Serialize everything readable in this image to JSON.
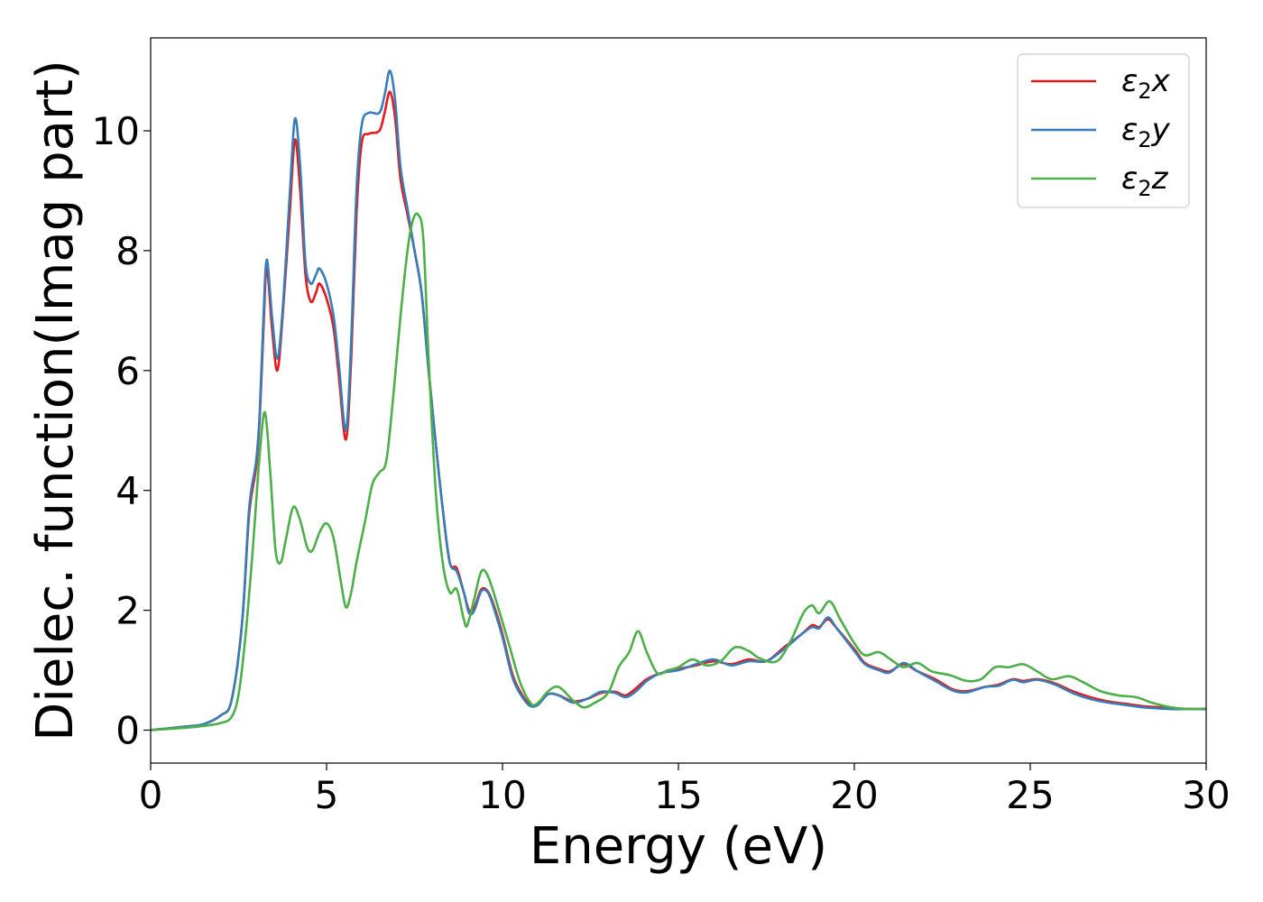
{
  "chart_data": {
    "type": "line",
    "xlabel": "Energy (eV)",
    "ylabel": "Dielec. function(Imag part)",
    "xlim": [
      0,
      30
    ],
    "ylim": [
      -0.55,
      11.55
    ],
    "xticks": [
      "0",
      "5",
      "10",
      "15",
      "20",
      "25",
      "30"
    ],
    "yticks": [
      "0",
      "2",
      "4",
      "6",
      "8",
      "10"
    ],
    "grid": false,
    "legend_position": "top-right",
    "series": [
      {
        "name": "ε₂x",
        "legend": {
          "symbol": "ε",
          "sub": "2",
          "var": "x"
        },
        "color": "#e41a1c",
        "points": [
          [
            0,
            0
          ],
          [
            1,
            0.06
          ],
          [
            1.5,
            0.1
          ],
          [
            2,
            0.25
          ],
          [
            2.3,
            0.5
          ],
          [
            2.6,
            1.8
          ],
          [
            2.8,
            3.6
          ],
          [
            3.0,
            4.4
          ],
          [
            3.1,
            5.2
          ],
          [
            3.2,
            6.6
          ],
          [
            3.3,
            7.7
          ],
          [
            3.45,
            6.7
          ],
          [
            3.6,
            6.0
          ],
          [
            3.75,
            6.9
          ],
          [
            3.95,
            8.6
          ],
          [
            4.1,
            9.85
          ],
          [
            4.25,
            9.0
          ],
          [
            4.4,
            7.6
          ],
          [
            4.55,
            7.15
          ],
          [
            4.7,
            7.3
          ],
          [
            4.8,
            7.45
          ],
          [
            5.0,
            7.2
          ],
          [
            5.2,
            6.7
          ],
          [
            5.35,
            5.9
          ],
          [
            5.55,
            4.85
          ],
          [
            5.7,
            6.2
          ],
          [
            5.85,
            8.6
          ],
          [
            6.0,
            9.8
          ],
          [
            6.2,
            9.95
          ],
          [
            6.5,
            10.0
          ],
          [
            6.65,
            10.3
          ],
          [
            6.8,
            10.65
          ],
          [
            6.95,
            10.2
          ],
          [
            7.1,
            9.2
          ],
          [
            7.3,
            8.6
          ],
          [
            7.5,
            8.0
          ],
          [
            7.7,
            7.3
          ],
          [
            7.9,
            6.0
          ],
          [
            8.1,
            4.8
          ],
          [
            8.3,
            3.7
          ],
          [
            8.5,
            2.8
          ],
          [
            8.7,
            2.7
          ],
          [
            8.9,
            2.3
          ],
          [
            9.05,
            2.0
          ],
          [
            9.2,
            2.05
          ],
          [
            9.4,
            2.35
          ],
          [
            9.6,
            2.3
          ],
          [
            9.8,
            2.0
          ],
          [
            10.0,
            1.6
          ],
          [
            10.3,
            0.9
          ],
          [
            10.6,
            0.55
          ],
          [
            10.8,
            0.42
          ],
          [
            11.0,
            0.42
          ],
          [
            11.3,
            0.6
          ],
          [
            11.6,
            0.58
          ],
          [
            12.0,
            0.48
          ],
          [
            12.4,
            0.52
          ],
          [
            12.8,
            0.62
          ],
          [
            13.2,
            0.64
          ],
          [
            13.5,
            0.58
          ],
          [
            13.8,
            0.7
          ],
          [
            14.1,
            0.85
          ],
          [
            14.5,
            0.95
          ],
          [
            15.0,
            1.02
          ],
          [
            15.5,
            1.08
          ],
          [
            16.0,
            1.15
          ],
          [
            16.5,
            1.1
          ],
          [
            17.0,
            1.18
          ],
          [
            17.5,
            1.15
          ],
          [
            18.0,
            1.38
          ],
          [
            18.5,
            1.6
          ],
          [
            18.8,
            1.75
          ],
          [
            19.0,
            1.72
          ],
          [
            19.25,
            1.85
          ],
          [
            19.5,
            1.7
          ],
          [
            20.0,
            1.35
          ],
          [
            20.3,
            1.12
          ],
          [
            20.7,
            1.02
          ],
          [
            21.0,
            0.98
          ],
          [
            21.4,
            1.1
          ],
          [
            21.8,
            0.98
          ],
          [
            22.3,
            0.85
          ],
          [
            22.8,
            0.68
          ],
          [
            23.2,
            0.65
          ],
          [
            23.7,
            0.72
          ],
          [
            24.1,
            0.76
          ],
          [
            24.5,
            0.85
          ],
          [
            24.8,
            0.82
          ],
          [
            25.2,
            0.85
          ],
          [
            25.7,
            0.78
          ],
          [
            26.2,
            0.65
          ],
          [
            26.7,
            0.55
          ],
          [
            27.2,
            0.48
          ],
          [
            27.7,
            0.44
          ],
          [
            28.2,
            0.4
          ],
          [
            28.7,
            0.38
          ],
          [
            29.2,
            0.36
          ],
          [
            30,
            0.35
          ]
        ]
      },
      {
        "name": "ε₂y",
        "legend": {
          "symbol": "ε",
          "sub": "2",
          "var": "y"
        },
        "color": "#377eb8",
        "points": [
          [
            0,
            0
          ],
          [
            1,
            0.06
          ],
          [
            1.5,
            0.1
          ],
          [
            2,
            0.25
          ],
          [
            2.3,
            0.5
          ],
          [
            2.6,
            1.8
          ],
          [
            2.8,
            3.7
          ],
          [
            3.0,
            4.5
          ],
          [
            3.1,
            5.3
          ],
          [
            3.2,
            6.8
          ],
          [
            3.3,
            7.85
          ],
          [
            3.45,
            6.9
          ],
          [
            3.6,
            6.2
          ],
          [
            3.75,
            7.0
          ],
          [
            3.95,
            8.9
          ],
          [
            4.1,
            10.2
          ],
          [
            4.25,
            9.4
          ],
          [
            4.4,
            7.8
          ],
          [
            4.55,
            7.45
          ],
          [
            4.7,
            7.6
          ],
          [
            4.8,
            7.7
          ],
          [
            5.0,
            7.45
          ],
          [
            5.2,
            6.9
          ],
          [
            5.35,
            6.1
          ],
          [
            5.55,
            5.0
          ],
          [
            5.7,
            6.5
          ],
          [
            5.85,
            9.0
          ],
          [
            6.0,
            10.1
          ],
          [
            6.2,
            10.3
          ],
          [
            6.5,
            10.3
          ],
          [
            6.65,
            10.6
          ],
          [
            6.8,
            11.0
          ],
          [
            6.95,
            10.5
          ],
          [
            7.1,
            9.4
          ],
          [
            7.3,
            8.7
          ],
          [
            7.5,
            8.0
          ],
          [
            7.7,
            7.3
          ],
          [
            7.9,
            6.0
          ],
          [
            8.1,
            4.8
          ],
          [
            8.3,
            3.7
          ],
          [
            8.5,
            2.8
          ],
          [
            8.7,
            2.65
          ],
          [
            8.9,
            2.3
          ],
          [
            9.05,
            1.95
          ],
          [
            9.2,
            2.0
          ],
          [
            9.4,
            2.32
          ],
          [
            9.6,
            2.28
          ],
          [
            9.8,
            1.95
          ],
          [
            10.0,
            1.55
          ],
          [
            10.3,
            0.85
          ],
          [
            10.6,
            0.52
          ],
          [
            10.8,
            0.4
          ],
          [
            11.0,
            0.42
          ],
          [
            11.3,
            0.6
          ],
          [
            11.6,
            0.58
          ],
          [
            12.0,
            0.46
          ],
          [
            12.4,
            0.52
          ],
          [
            12.8,
            0.64
          ],
          [
            13.2,
            0.62
          ],
          [
            13.5,
            0.55
          ],
          [
            13.8,
            0.65
          ],
          [
            14.1,
            0.82
          ],
          [
            14.5,
            0.95
          ],
          [
            15.0,
            1.0
          ],
          [
            15.5,
            1.1
          ],
          [
            16.0,
            1.18
          ],
          [
            16.5,
            1.08
          ],
          [
            17.0,
            1.15
          ],
          [
            17.5,
            1.15
          ],
          [
            18.0,
            1.35
          ],
          [
            18.5,
            1.6
          ],
          [
            18.8,
            1.72
          ],
          [
            19.0,
            1.7
          ],
          [
            19.25,
            1.88
          ],
          [
            19.5,
            1.7
          ],
          [
            20.0,
            1.32
          ],
          [
            20.3,
            1.1
          ],
          [
            20.7,
            1.0
          ],
          [
            21.0,
            0.96
          ],
          [
            21.4,
            1.12
          ],
          [
            21.8,
            0.98
          ],
          [
            22.3,
            0.82
          ],
          [
            22.8,
            0.66
          ],
          [
            23.2,
            0.63
          ],
          [
            23.7,
            0.72
          ],
          [
            24.1,
            0.74
          ],
          [
            24.5,
            0.84
          ],
          [
            24.8,
            0.8
          ],
          [
            25.2,
            0.84
          ],
          [
            25.7,
            0.76
          ],
          [
            26.2,
            0.62
          ],
          [
            26.7,
            0.52
          ],
          [
            27.2,
            0.46
          ],
          [
            27.7,
            0.42
          ],
          [
            28.2,
            0.38
          ],
          [
            28.7,
            0.36
          ],
          [
            29.2,
            0.35
          ],
          [
            30,
            0.35
          ]
        ]
      },
      {
        "name": "ε₂z",
        "legend": {
          "symbol": "ε",
          "sub": "2",
          "var": "z"
        },
        "color": "#4daf4a",
        "points": [
          [
            0,
            0
          ],
          [
            1,
            0.04
          ],
          [
            1.5,
            0.07
          ],
          [
            2,
            0.12
          ],
          [
            2.3,
            0.22
          ],
          [
            2.5,
            0.6
          ],
          [
            2.7,
            1.6
          ],
          [
            2.9,
            3.0
          ],
          [
            3.1,
            4.6
          ],
          [
            3.25,
            5.3
          ],
          [
            3.4,
            4.3
          ],
          [
            3.55,
            3.0
          ],
          [
            3.7,
            2.8
          ],
          [
            3.85,
            3.2
          ],
          [
            4.05,
            3.72
          ],
          [
            4.25,
            3.5
          ],
          [
            4.45,
            3.05
          ],
          [
            4.6,
            3.0
          ],
          [
            4.8,
            3.3
          ],
          [
            5.0,
            3.45
          ],
          [
            5.2,
            3.2
          ],
          [
            5.4,
            2.5
          ],
          [
            5.55,
            2.05
          ],
          [
            5.7,
            2.3
          ],
          [
            5.85,
            2.8
          ],
          [
            6.1,
            3.5
          ],
          [
            6.3,
            4.1
          ],
          [
            6.5,
            4.3
          ],
          [
            6.7,
            4.5
          ],
          [
            6.9,
            5.6
          ],
          [
            7.1,
            6.9
          ],
          [
            7.3,
            8.0
          ],
          [
            7.45,
            8.5
          ],
          [
            7.6,
            8.6
          ],
          [
            7.75,
            8.2
          ],
          [
            7.9,
            6.2
          ],
          [
            8.1,
            4.0
          ],
          [
            8.3,
            2.8
          ],
          [
            8.5,
            2.3
          ],
          [
            8.7,
            2.35
          ],
          [
            8.9,
            1.85
          ],
          [
            9.0,
            1.75
          ],
          [
            9.2,
            2.2
          ],
          [
            9.4,
            2.65
          ],
          [
            9.6,
            2.55
          ],
          [
            9.9,
            2.0
          ],
          [
            10.2,
            1.4
          ],
          [
            10.5,
            0.8
          ],
          [
            10.8,
            0.45
          ],
          [
            11.0,
            0.45
          ],
          [
            11.3,
            0.65
          ],
          [
            11.6,
            0.72
          ],
          [
            12.0,
            0.5
          ],
          [
            12.3,
            0.38
          ],
          [
            12.6,
            0.45
          ],
          [
            13.0,
            0.62
          ],
          [
            13.3,
            1.05
          ],
          [
            13.6,
            1.3
          ],
          [
            13.85,
            1.65
          ],
          [
            14.1,
            1.3
          ],
          [
            14.4,
            0.95
          ],
          [
            14.7,
            1.0
          ],
          [
            15.0,
            1.05
          ],
          [
            15.4,
            1.18
          ],
          [
            15.8,
            1.08
          ],
          [
            16.2,
            1.15
          ],
          [
            16.6,
            1.38
          ],
          [
            17.0,
            1.32
          ],
          [
            17.3,
            1.2
          ],
          [
            17.8,
            1.15
          ],
          [
            18.2,
            1.5
          ],
          [
            18.55,
            1.95
          ],
          [
            18.8,
            2.08
          ],
          [
            19.0,
            1.95
          ],
          [
            19.3,
            2.15
          ],
          [
            19.6,
            1.85
          ],
          [
            20.0,
            1.45
          ],
          [
            20.3,
            1.25
          ],
          [
            20.7,
            1.3
          ],
          [
            21.1,
            1.15
          ],
          [
            21.4,
            1.05
          ],
          [
            21.8,
            1.12
          ],
          [
            22.2,
            0.98
          ],
          [
            22.7,
            0.92
          ],
          [
            23.2,
            0.82
          ],
          [
            23.6,
            0.85
          ],
          [
            24.0,
            1.05
          ],
          [
            24.4,
            1.05
          ],
          [
            24.8,
            1.1
          ],
          [
            25.2,
            0.98
          ],
          [
            25.6,
            0.85
          ],
          [
            26.1,
            0.9
          ],
          [
            26.5,
            0.8
          ],
          [
            27.0,
            0.65
          ],
          [
            27.5,
            0.58
          ],
          [
            28.0,
            0.55
          ],
          [
            28.5,
            0.45
          ],
          [
            29.0,
            0.38
          ],
          [
            29.5,
            0.35
          ],
          [
            30,
            0.36
          ]
        ]
      }
    ]
  }
}
